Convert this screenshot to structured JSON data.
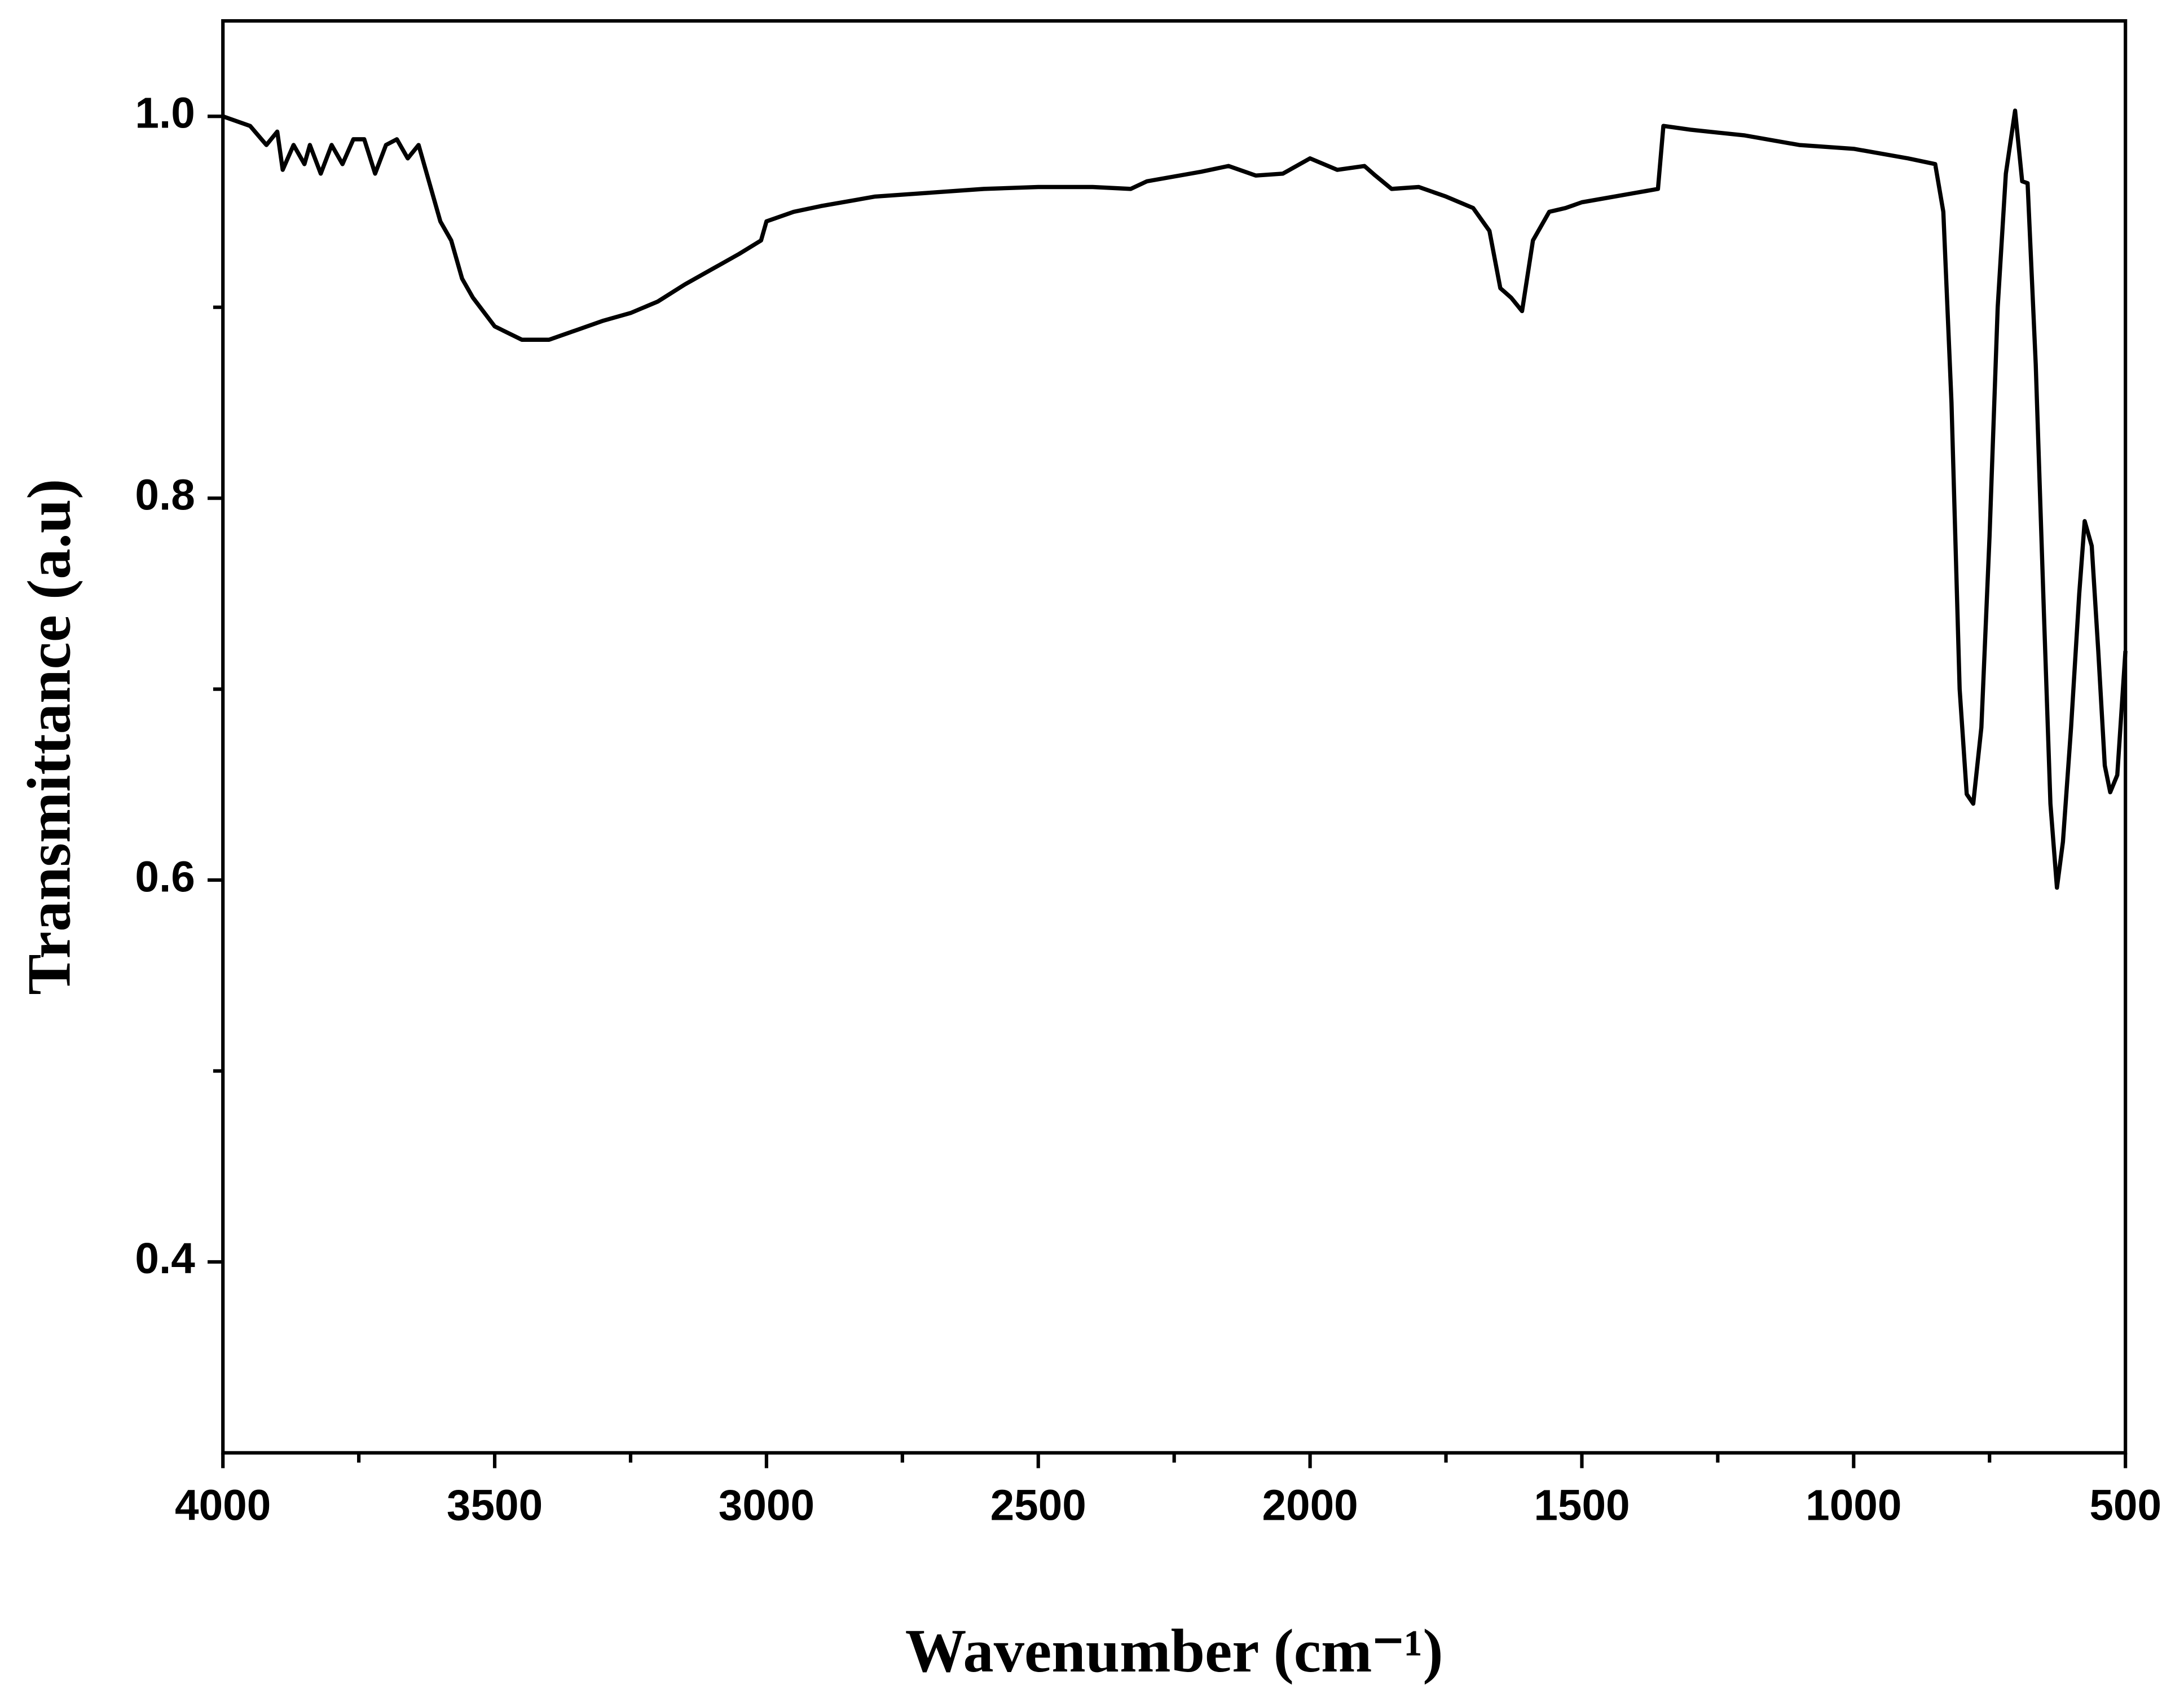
{
  "chart_data": {
    "type": "line",
    "x_label": "Wavenumber (cm⁻¹)",
    "y_label": "Transmittance (a.u)",
    "xlim": [
      4000,
      500
    ],
    "ylim": [
      0.3,
      1.05
    ],
    "xticks": [
      4000,
      3500,
      3000,
      2500,
      2000,
      1500,
      1000,
      500
    ],
    "xminorticks": [
      3750,
      3250,
      2750,
      2250,
      1750,
      1250,
      750
    ],
    "yticks": [
      0.4,
      0.6,
      0.8,
      {
        "value": 1,
        "label": "1.0"
      }
    ],
    "yminorticks": [
      0.5,
      0.7,
      0.9
    ],
    "series": [
      {
        "color": "#000000",
        "x": [
          4000,
          3950,
          3920,
          3900,
          3890,
          3870,
          3850,
          3840,
          3820,
          3800,
          3780,
          3760,
          3740,
          3720,
          3700,
          3680,
          3660,
          3640,
          3620,
          3600,
          3580,
          3560,
          3540,
          3500,
          3450,
          3400,
          3350,
          3300,
          3250,
          3200,
          3150,
          3100,
          3050,
          3010,
          3000,
          2950,
          2900,
          2800,
          2700,
          2600,
          2500,
          2400,
          2330,
          2300,
          2200,
          2150,
          2100,
          2050,
          2000,
          1950,
          1900,
          1880,
          1850,
          1800,
          1750,
          1700,
          1670,
          1650,
          1630,
          1610,
          1590,
          1560,
          1530,
          1500,
          1460,
          1400,
          1360,
          1350,
          1300,
          1200,
          1100,
          1000,
          900,
          850,
          835,
          820,
          805,
          792,
          780,
          765,
          750,
          735,
          720,
          703,
          690,
          680,
          665,
          650,
          638,
          626,
          615,
          600,
          585,
          575,
          562,
          550,
          538,
          528,
          515,
          500
        ],
        "values": [
          1.0,
          0.995,
          0.985,
          0.992,
          0.972,
          0.985,
          0.975,
          0.985,
          0.97,
          0.985,
          0.975,
          0.988,
          0.988,
          0.97,
          0.985,
          0.988,
          0.978,
          0.985,
          0.965,
          0.945,
          0.935,
          0.915,
          0.905,
          0.89,
          0.883,
          0.883,
          0.888,
          0.893,
          0.897,
          0.903,
          0.912,
          0.92,
          0.928,
          0.935,
          0.945,
          0.95,
          0.953,
          0.958,
          0.96,
          0.962,
          0.963,
          0.963,
          0.962,
          0.966,
          0.971,
          0.974,
          0.969,
          0.97,
          0.978,
          0.972,
          0.974,
          0.969,
          0.962,
          0.963,
          0.958,
          0.952,
          0.94,
          0.91,
          0.905,
          0.898,
          0.935,
          0.95,
          0.952,
          0.955,
          0.957,
          0.96,
          0.962,
          0.995,
          0.993,
          0.99,
          0.985,
          0.983,
          0.978,
          0.975,
          0.95,
          0.85,
          0.7,
          0.645,
          0.64,
          0.68,
          0.78,
          0.9,
          0.97,
          1.003,
          0.966,
          0.965,
          0.87,
          0.74,
          0.64,
          0.596,
          0.62,
          0.68,
          0.75,
          0.788,
          0.775,
          0.72,
          0.66,
          0.646,
          0.655,
          0.72
        ]
      }
    ]
  }
}
